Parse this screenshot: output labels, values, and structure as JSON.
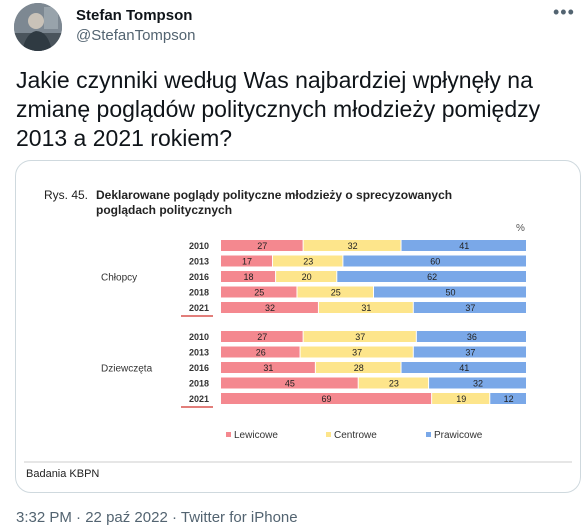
{
  "tweet": {
    "author_name": "Stefan Tompson",
    "author_handle": "@StefanTompson",
    "more_icon": "more-horizontal-icon",
    "text": "Jakie czynniki według Was najbardziej wpłynęły na zmianę poglądów politycznych młodzieży pomiędzy 2013 a 2021 rokiem?",
    "time": "3:32 PM",
    "separator": "·",
    "date": "22 paź 2022",
    "source": "Twitter for iPhone"
  },
  "figure": {
    "figure_number": "Rys. 45.",
    "title_line1": "Deklarowane poglądy polityczne młodzieży o sprecyzowanych",
    "title_line2": "poglądach politycznych",
    "percent_label": "%",
    "source_note": "Badania KBPN"
  },
  "chart_data": {
    "type": "bar",
    "stacked": true,
    "orientation": "horizontal",
    "title": "Deklarowane poglądy polityczne młodzieży o sprecyzowanych poglądach politycznych",
    "xlim": [
      0,
      100
    ],
    "unit": "%",
    "series_names": [
      "Lewicowe",
      "Centrowe",
      "Prawicowe"
    ],
    "colors": [
      "#f4888f",
      "#fde58b",
      "#7aa8e8"
    ],
    "groups": [
      {
        "name": "Chłopcy",
        "rows": [
          {
            "year": "2010",
            "values": [
              27,
              32,
              41
            ]
          },
          {
            "year": "2013",
            "values": [
              17,
              23,
              60
            ]
          },
          {
            "year": "2016",
            "values": [
              18,
              20,
              62
            ]
          },
          {
            "year": "2018",
            "values": [
              25,
              25,
              50
            ]
          },
          {
            "year": "2021",
            "values": [
              32,
              31,
              37
            ]
          }
        ]
      },
      {
        "name": "Dziewczęta",
        "rows": [
          {
            "year": "2010",
            "values": [
              27,
              37,
              36
            ]
          },
          {
            "year": "2013",
            "values": [
              26,
              37,
              37
            ]
          },
          {
            "year": "2016",
            "values": [
              31,
              28,
              41
            ]
          },
          {
            "year": "2018",
            "values": [
              45,
              23,
              32
            ]
          },
          {
            "year": "2021",
            "values": [
              69,
              19,
              12
            ]
          }
        ]
      }
    ],
    "legend_position": "bottom",
    "highlight_year": "2021",
    "grid": false
  }
}
